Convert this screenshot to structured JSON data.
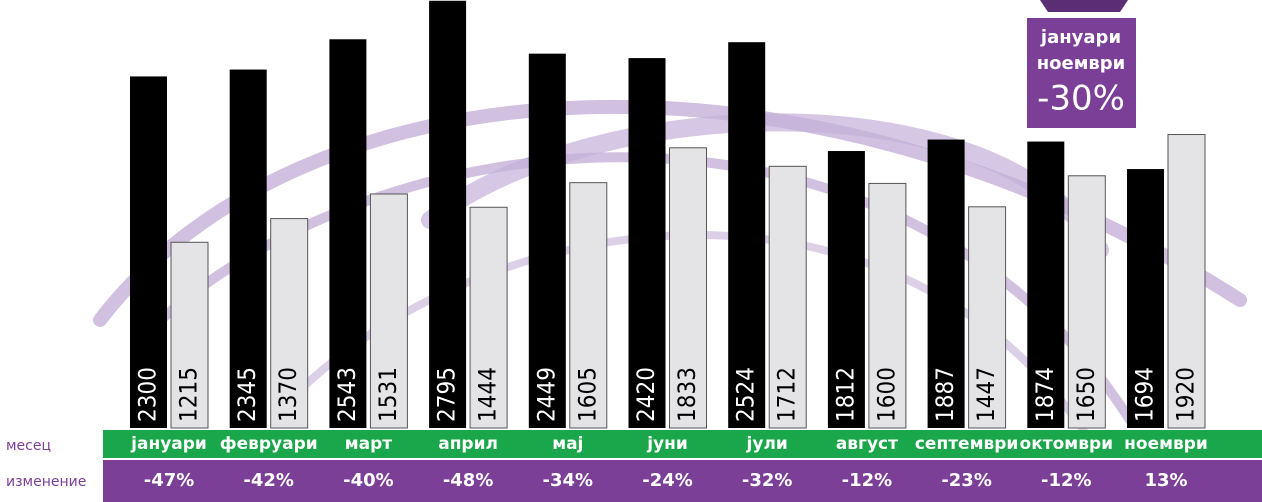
{
  "chart_data": {
    "type": "bar",
    "categories": [
      "јануари",
      "февруари",
      "март",
      "април",
      "мај",
      "јуни",
      "јули",
      "август",
      "септември",
      "октомври",
      "ноември"
    ],
    "series": [
      {
        "color": "#000000",
        "values": [
          2300,
          2345,
          2543,
          2795,
          2449,
          2420,
          2524,
          1812,
          1887,
          1874,
          1694
        ]
      },
      {
        "color": "#e4e4e6",
        "values": [
          1215,
          1370,
          1531,
          1444,
          1605,
          1833,
          1712,
          1600,
          1447,
          1650,
          1920
        ]
      }
    ],
    "ylim": [
      0,
      2800
    ],
    "row_labels": [
      "месец",
      "изменение"
    ],
    "changes": {
      "values": [
        -47,
        -42,
        -40,
        -48,
        -34,
        -24,
        -32,
        -12,
        -23,
        -12,
        13
      ],
      "value_labels": [
        "-47%",
        "-42%",
        "-40%",
        "-48%",
        "-34%",
        "-24%",
        "-32%",
        "-12%",
        "-23%",
        "-12%",
        "13%"
      ]
    },
    "badge": {
      "lines": [
        "јануари",
        "ноември"
      ],
      "value": -30,
      "value_label": "-30%"
    }
  }
}
